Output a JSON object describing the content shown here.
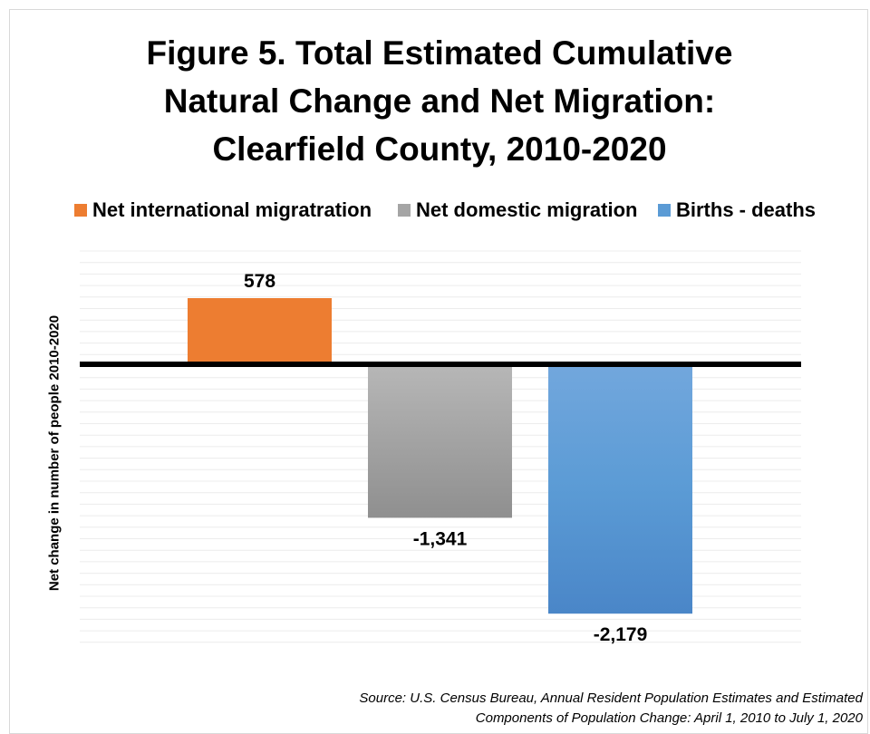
{
  "chart_data": {
    "type": "bar",
    "title": "Figure 5. Total Estimated Cumulative\nNatural Change and Net Migration:\nClearfield County, 2010-2020",
    "ylabel": "Net change in number of people 2010-2020",
    "xlabel": "",
    "ylim": [
      -2800,
      1500
    ],
    "grid": true,
    "legend_position": "top",
    "series": [
      {
        "name": "Net international migratration",
        "values": [
          578
        ],
        "value_label": "578",
        "color": "#ED7D31"
      },
      {
        "name": "Net domestic migration",
        "values": [
          -1341
        ],
        "value_label": "-1,341",
        "color": "#A5A5A5"
      },
      {
        "name": "Births  - deaths",
        "values": [
          -2179
        ],
        "value_label": "-2,179",
        "color": "#5B9BD5"
      }
    ]
  },
  "source_note": "Source: U.S. Census Bureau, Annual Resident Population Estimates and Estimated\nComponents of Population Change: April 1, 2010 to July 1, 2020"
}
